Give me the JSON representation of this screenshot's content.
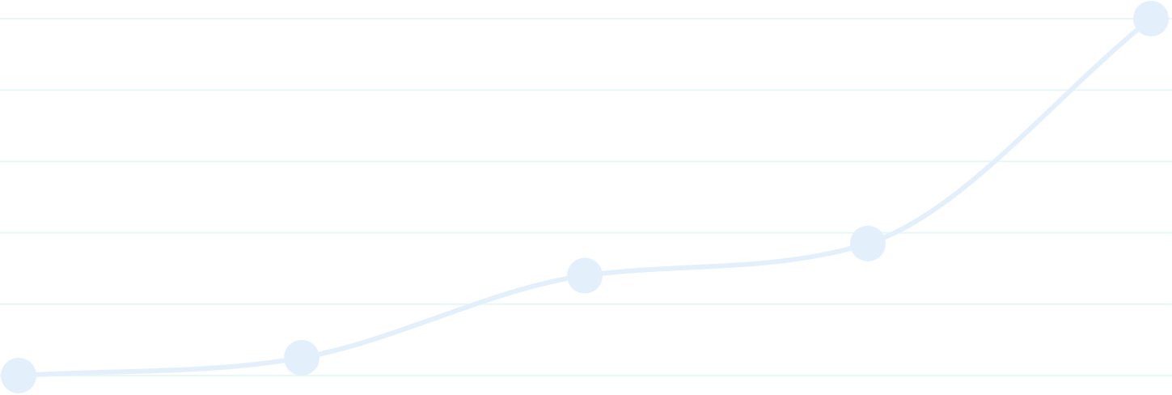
{
  "chart_data": {
    "type": "line",
    "x": [
      1,
      2,
      3,
      4,
      5
    ],
    "values": [
      0,
      0.25,
      1.4,
      1.85,
      5
    ],
    "ylim": [
      0,
      5
    ],
    "grid": true,
    "series": [
      {
        "values": [
          0,
          0.25,
          1.4,
          1.85,
          5
        ]
      }
    ],
    "colors": {
      "line": "#e3f0fb",
      "marker": "#e3f0fb",
      "grid": "#e8f6f5",
      "background": "#ffffff"
    }
  }
}
